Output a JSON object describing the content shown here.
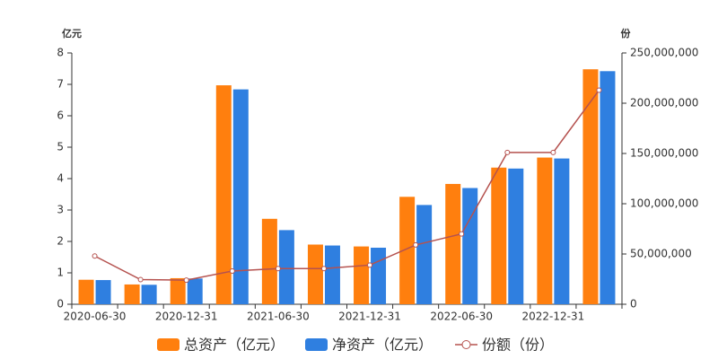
{
  "chart_data": {
    "type": "bar-line",
    "y_axis_label": "亿元",
    "y2_axis_label": "份",
    "categories": [
      "2020-06-30",
      null,
      "2020-12-31",
      null,
      "2021-06-30",
      null,
      "2021-12-31",
      null,
      "2022-06-30",
      null,
      "2022-12-31",
      null
    ],
    "series": [
      {
        "name": "总资产（亿元）",
        "color": "#ff7f0e",
        "type": "bar",
        "values": [
          0.78,
          0.63,
          0.83,
          6.97,
          2.72,
          1.9,
          1.84,
          3.42,
          3.83,
          4.35,
          4.67,
          7.48
        ]
      },
      {
        "name": "净资产（亿元）",
        "color": "#2f7fe0",
        "type": "bar",
        "values": [
          0.77,
          0.62,
          0.82,
          6.84,
          2.36,
          1.87,
          1.8,
          3.16,
          3.7,
          4.32,
          4.64,
          7.42
        ]
      },
      {
        "name": "份额（份）",
        "color": "#b5524f",
        "type": "line",
        "axis": "y2",
        "values": [
          48000000,
          24500000,
          24000000,
          33000000,
          35500000,
          35500000,
          39000000,
          59000000,
          70000000,
          151000000,
          151000000,
          213000000
        ]
      }
    ],
    "ylim": [
      0,
      8
    ],
    "yticks": [
      0,
      1,
      2,
      3,
      4,
      5,
      6,
      7,
      8
    ],
    "y2lim": [
      0,
      250000000
    ],
    "y2ticks": [
      0,
      {
        "value": 50000000,
        "label": "50,000,000"
      },
      {
        "value": 100000000,
        "label": "100,000,000"
      },
      {
        "value": 150000000,
        "label": "150,000,000"
      },
      {
        "value": 200000000,
        "label": "200,000,000"
      },
      {
        "value": 250000000,
        "label": "250,000,000"
      }
    ],
    "grid": false,
    "legend": "bottom"
  }
}
